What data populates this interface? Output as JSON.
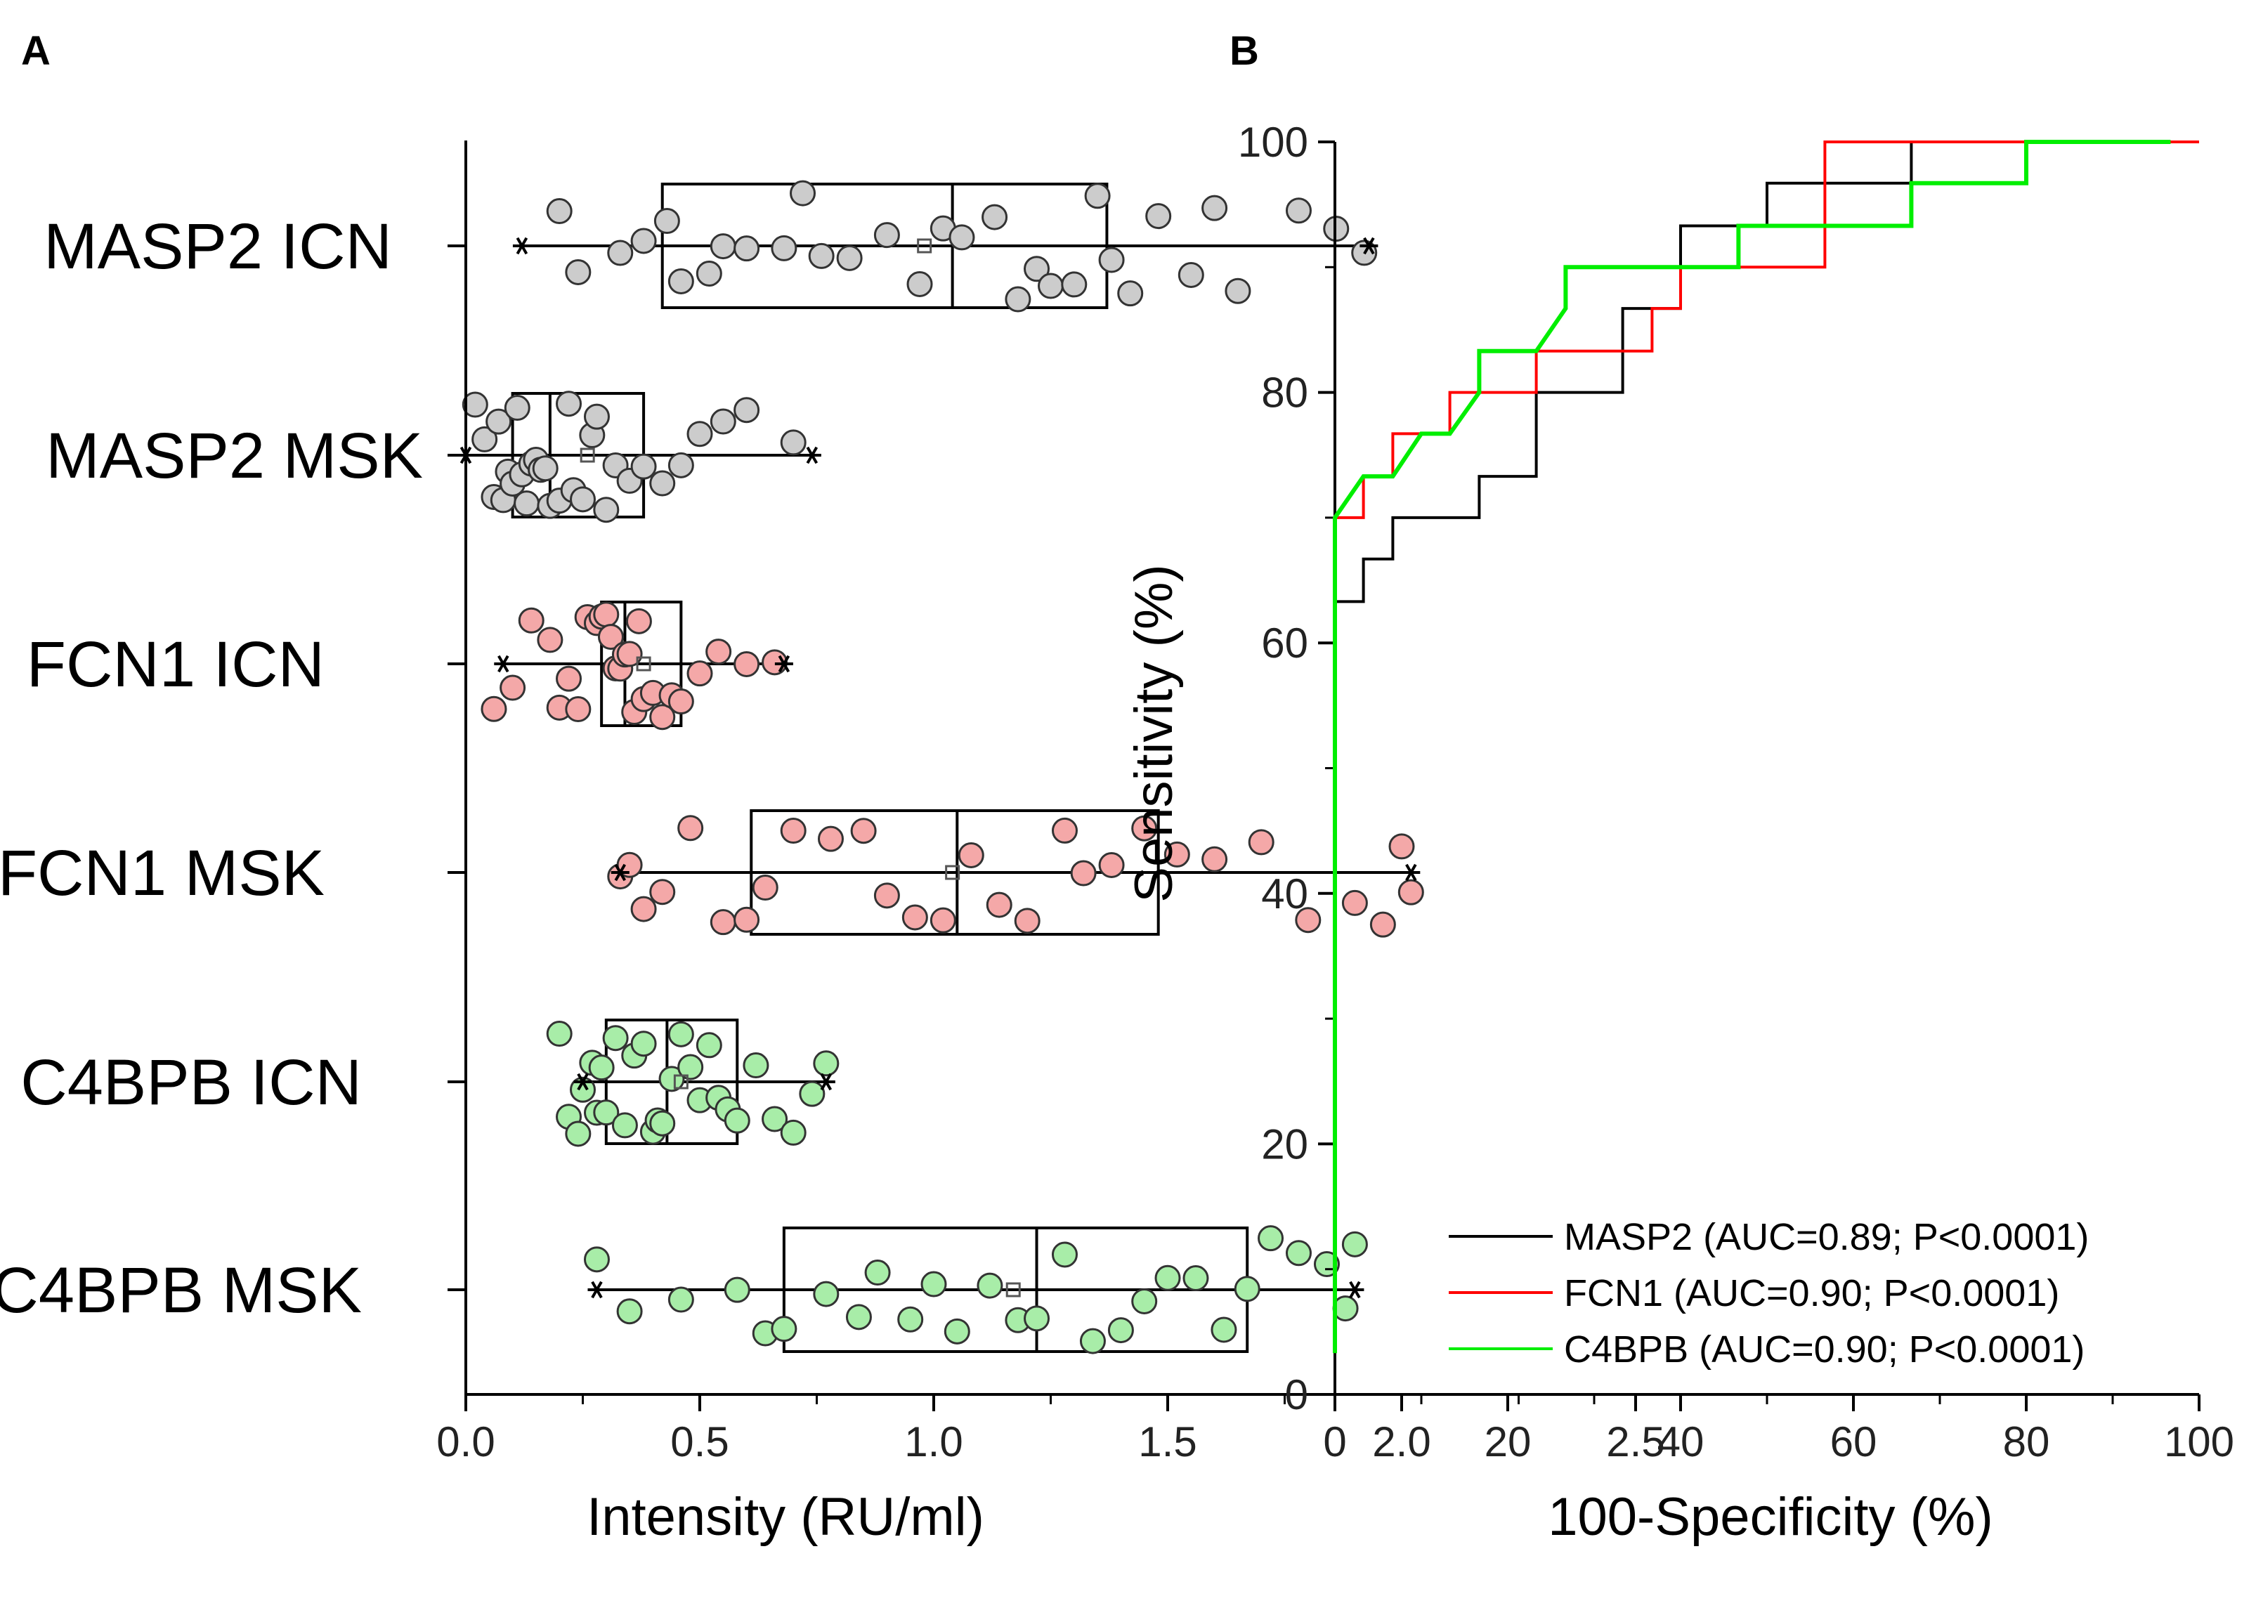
{
  "panels": {
    "a": "A",
    "b": "B"
  },
  "chart_data": [
    {
      "type": "box",
      "orientation": "horizontal",
      "title": "",
      "xlabel": "Intensity (RU/ml)",
      "ylabel": "",
      "xlim": [
        0,
        2.75
      ],
      "xticks": [
        "0.0",
        "0.5",
        "1.0",
        "1.5",
        "2.0",
        "2.5"
      ],
      "grid": false,
      "groups": [
        {
          "label": "MASP2 ICN",
          "color": "#cccccc",
          "whisker": [
            0.12,
            1.93
          ],
          "box": [
            0.42,
            1.37
          ],
          "median": 1.04,
          "mean": 0.98,
          "points": [
            0.2,
            0.24,
            0.33,
            0.38,
            0.43,
            0.46,
            0.52,
            0.55,
            0.6,
            0.68,
            0.72,
            0.76,
            0.82,
            0.9,
            0.97,
            1.02,
            1.06,
            1.13,
            1.18,
            1.22,
            1.25,
            1.3,
            1.35,
            1.38,
            1.42,
            1.48,
            1.55,
            1.6,
            1.65,
            1.78,
            1.86,
            1.92
          ]
        },
        {
          "label": "MASP2 MSK",
          "color": "#cccccc",
          "whisker": [
            0.0,
            0.74
          ],
          "box": [
            0.1,
            0.38
          ],
          "median": 0.18,
          "mean": 0.26,
          "points": [
            0.02,
            0.04,
            0.06,
            0.07,
            0.08,
            0.09,
            0.1,
            0.11,
            0.12,
            0.13,
            0.14,
            0.15,
            0.16,
            0.17,
            0.18,
            0.2,
            0.22,
            0.23,
            0.25,
            0.27,
            0.28,
            0.3,
            0.32,
            0.35,
            0.38,
            0.42,
            0.46,
            0.5,
            0.55,
            0.6,
            0.7
          ]
        },
        {
          "label": "FCN1 ICN",
          "color": "#f4a8a8",
          "whisker": [
            0.08,
            0.68
          ],
          "box": [
            0.29,
            0.46
          ],
          "median": 0.34,
          "mean": 0.38,
          "points": [
            0.06,
            0.1,
            0.14,
            0.18,
            0.2,
            0.22,
            0.24,
            0.26,
            0.28,
            0.29,
            0.3,
            0.31,
            0.32,
            0.33,
            0.34,
            0.35,
            0.36,
            0.37,
            0.38,
            0.4,
            0.42,
            0.44,
            0.46,
            0.5,
            0.54,
            0.6,
            0.66
          ]
        },
        {
          "label": "FCN1 MSK",
          "color": "#f4a8a8",
          "whisker": [
            0.33,
            2.02
          ],
          "box": [
            0.61,
            1.48
          ],
          "median": 1.05,
          "mean": 1.04,
          "points": [
            0.33,
            0.35,
            0.38,
            0.42,
            0.48,
            0.55,
            0.6,
            0.64,
            0.7,
            0.78,
            0.85,
            0.9,
            0.96,
            1.02,
            1.08,
            1.14,
            1.2,
            1.28,
            1.32,
            1.38,
            1.45,
            1.52,
            1.6,
            1.7,
            1.8,
            1.9,
            1.96,
            2.0,
            2.02
          ]
        },
        {
          "label": "C4BPB ICN",
          "color": "#a8eda8",
          "whisker": [
            0.25,
            0.77
          ],
          "box": [
            0.3,
            0.58
          ],
          "median": 0.43,
          "mean": 0.46,
          "points": [
            0.2,
            0.22,
            0.24,
            0.25,
            0.27,
            0.28,
            0.29,
            0.3,
            0.32,
            0.34,
            0.36,
            0.38,
            0.4,
            0.41,
            0.42,
            0.44,
            0.46,
            0.48,
            0.5,
            0.52,
            0.54,
            0.56,
            0.58,
            0.62,
            0.66,
            0.7,
            0.74,
            0.77
          ]
        },
        {
          "label": "C4BPB MSK",
          "color": "#a8eda8",
          "whisker": [
            0.28,
            1.9
          ],
          "box": [
            0.68,
            1.67
          ],
          "median": 1.22,
          "mean": 1.17,
          "points": [
            0.28,
            0.35,
            0.46,
            0.58,
            0.64,
            0.68,
            0.77,
            0.84,
            0.88,
            0.95,
            1.0,
            1.05,
            1.12,
            1.18,
            1.22,
            1.28,
            1.34,
            1.4,
            1.45,
            1.5,
            1.56,
            1.62,
            1.67,
            1.72,
            1.78,
            1.84,
            1.88,
            1.9
          ]
        }
      ]
    },
    {
      "type": "line",
      "title": "",
      "xlabel": "100-Specificity (%)",
      "ylabel": "Sensitivity (%)",
      "xlim": [
        0,
        100
      ],
      "ylim": [
        0,
        100
      ],
      "xticks": [
        "0",
        "20",
        "40",
        "60",
        "80",
        "100"
      ],
      "yticks": [
        "0",
        "20",
        "40",
        "60",
        "80",
        "100"
      ],
      "grid": false,
      "legend_position": "bottom-right",
      "series": [
        {
          "name": "MASP2 (AUC=0.89; P<0.0001)",
          "color": "#000000",
          "x": [
            0,
            0,
            3.3,
            3.3,
            6.7,
            6.7,
            16.7,
            16.7,
            23.3,
            23.3,
            33.3,
            33.3,
            40,
            40,
            50,
            50,
            66.7,
            66.7,
            100
          ],
          "y": [
            3.3,
            63.3,
            63.3,
            66.7,
            66.7,
            70,
            70,
            73.3,
            73.3,
            80,
            80,
            86.7,
            86.7,
            93.3,
            93.3,
            96.7,
            96.7,
            100,
            100
          ]
        },
        {
          "name": "FCN1 (AUC=0.90; P<0.0001)",
          "color": "#ff0000",
          "x": [
            0,
            0,
            3.3,
            3.3,
            6.7,
            6.7,
            13.3,
            13.3,
            23.3,
            23.3,
            36.7,
            36.7,
            40,
            40,
            56.7,
            56.7,
            100
          ],
          "y": [
            3.3,
            70,
            70,
            73.3,
            73.3,
            76.7,
            76.7,
            80,
            80,
            83.3,
            83.3,
            86.7,
            86.7,
            90,
            90,
            100,
            100
          ]
        },
        {
          "name": "C4BPB (AUC=0.90; P<0.0001)",
          "color": "#00ee00",
          "x": [
            0,
            0,
            3.3,
            6.7,
            10,
            13.3,
            16.7,
            16.7,
            23.3,
            26.7,
            26.7,
            46.7,
            46.7,
            66.7,
            66.7,
            80,
            80,
            96.7
          ],
          "y": [
            3.3,
            70,
            73.3,
            73.3,
            76.7,
            76.7,
            80,
            83.3,
            83.3,
            86.7,
            90,
            90,
            93.3,
            93.3,
            96.7,
            96.7,
            100,
            100
          ]
        }
      ]
    }
  ]
}
